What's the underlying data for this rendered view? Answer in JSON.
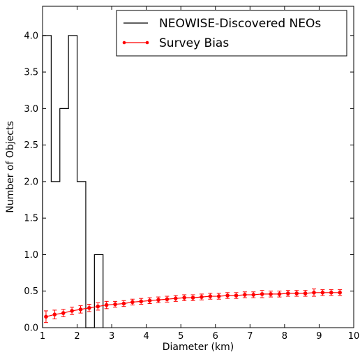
{
  "chart_data": {
    "type": "line",
    "xlabel": "Diameter (km)",
    "ylabel": "Number of Objects",
    "xlim": [
      1,
      10
    ],
    "ylim": [
      0,
      4.4
    ],
    "x_ticks": [
      "1",
      "2",
      "3",
      "4",
      "5",
      "6",
      "7",
      "8",
      "9",
      "10"
    ],
    "y_ticks": [
      "0.0",
      "0.5",
      "1.0",
      "1.5",
      "2.0",
      "2.5",
      "3.0",
      "3.5",
      "4.0"
    ],
    "legend_position": "top-right",
    "series": [
      {
        "name": "NEOWISE-Discovered NEOs",
        "style": "step histogram",
        "color": "#000000",
        "bin_edges": [
          1.0,
          1.25,
          1.5,
          1.75,
          2.0,
          2.25,
          2.5,
          2.75
        ],
        "values": [
          4,
          2,
          3,
          4,
          2,
          0,
          1
        ]
      },
      {
        "name": "Survey Bias",
        "style": "line with markers and error bars",
        "color": "#ff0000",
        "x": [
          1.1,
          1.35,
          1.6,
          1.85,
          2.1,
          2.35,
          2.6,
          2.85,
          3.1,
          3.35,
          3.6,
          3.85,
          4.1,
          4.35,
          4.6,
          4.85,
          5.1,
          5.35,
          5.6,
          5.85,
          6.1,
          6.35,
          6.6,
          6.85,
          7.1,
          7.35,
          7.6,
          7.85,
          8.1,
          8.35,
          8.6,
          8.85,
          9.1,
          9.35,
          9.6
        ],
        "values": [
          0.15,
          0.18,
          0.2,
          0.23,
          0.25,
          0.27,
          0.29,
          0.31,
          0.32,
          0.33,
          0.35,
          0.36,
          0.37,
          0.38,
          0.39,
          0.4,
          0.41,
          0.41,
          0.42,
          0.43,
          0.43,
          0.44,
          0.44,
          0.45,
          0.45,
          0.46,
          0.46,
          0.46,
          0.47,
          0.47,
          0.47,
          0.48,
          0.48,
          0.48,
          0.48
        ],
        "errors": [
          0.08,
          0.06,
          0.05,
          0.05,
          0.05,
          0.05,
          0.05,
          0.05,
          0.04,
          0.04,
          0.04,
          0.04,
          0.04,
          0.04,
          0.04,
          0.04,
          0.04,
          0.04,
          0.04,
          0.04,
          0.04,
          0.04,
          0.04,
          0.04,
          0.04,
          0.05,
          0.04,
          0.04,
          0.04,
          0.04,
          0.04,
          0.05,
          0.04,
          0.04,
          0.04
        ]
      }
    ]
  }
}
